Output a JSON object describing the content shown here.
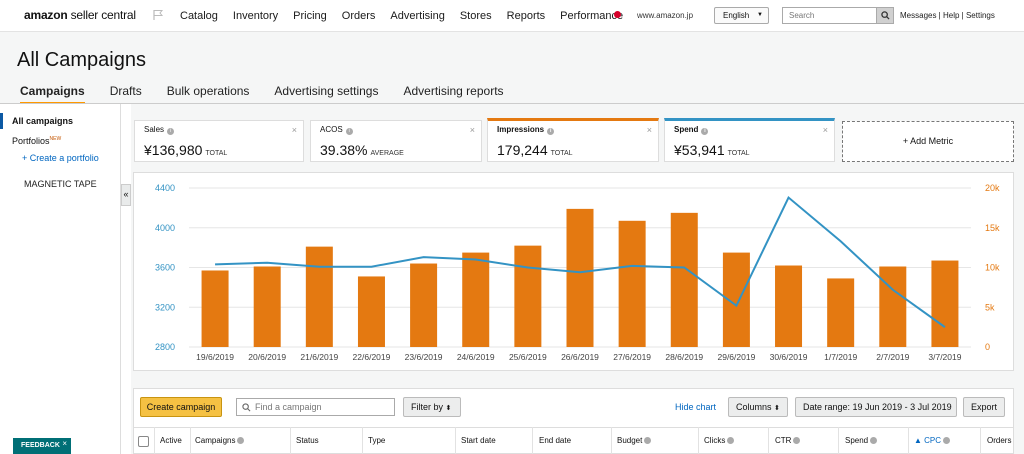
{
  "nav": {
    "logo_bold": "amazon",
    "logo_rest": " seller central",
    "links": [
      "Catalog",
      "Inventory",
      "Pricing",
      "Orders",
      "Advertising",
      "Stores",
      "Reports",
      "Performance"
    ],
    "domain": "www.amazon.jp",
    "language": "English",
    "search_placeholder": "Search",
    "utility_links": "Messages | Help | Settings"
  },
  "page": {
    "title": "All Campaigns",
    "tabs": [
      "Campaigns",
      "Drafts",
      "Bulk operations",
      "Advertising settings",
      "Advertising reports"
    ]
  },
  "sidebar": {
    "all_campaigns": "All campaigns",
    "portfolios": "Portfolios",
    "new_badge": "NEW",
    "create_portfolio": "+ Create a portfolio",
    "portfolio_item": "MAGNETIC TAPE",
    "collapse_glyph": "«"
  },
  "metrics": [
    {
      "label": "Sales",
      "value": "¥136,980",
      "unit": "TOTAL"
    },
    {
      "label": "ACOS",
      "value": "39.38%",
      "unit": "AVERAGE"
    },
    {
      "label": "Impressions",
      "value": "179,244",
      "unit": "TOTAL",
      "accent": "#e47911"
    },
    {
      "label": "Spend",
      "value": "¥53,941",
      "unit": "TOTAL",
      "accent": "#3393c4"
    }
  ],
  "add_metric": "+ Add Metric",
  "chart_data": {
    "type": "bar",
    "categories": [
      "19/6/2019",
      "20/6/2019",
      "21/6/2019",
      "22/6/2019",
      "23/6/2019",
      "24/6/2019",
      "25/6/2019",
      "26/6/2019",
      "27/6/2019",
      "28/6/2019",
      "29/6/2019",
      "30/6/2019",
      "1/7/2019",
      "2/7/2019",
      "3/7/2019"
    ],
    "series": [
      {
        "type": "bar",
        "axis": "left",
        "color": "#e47911",
        "values": [
          3570,
          3610,
          3810,
          3510,
          3640,
          3750,
          3820,
          4190,
          4070,
          4150,
          3750,
          3620,
          3490,
          3610,
          3670
        ]
      },
      {
        "type": "line",
        "axis": "right",
        "color": "#3393c4",
        "values": [
          10400,
          10600,
          10100,
          10100,
          11300,
          11000,
          10000,
          9400,
          10200,
          10000,
          5200,
          18800,
          13300,
          7200,
          2500
        ]
      }
    ],
    "y_left": {
      "ticks": [
        "4400",
        "4000",
        "3600",
        "3200",
        "2800"
      ],
      "range": [
        2800,
        4400
      ],
      "color": "#3393c4"
    },
    "y_right": {
      "ticks": [
        "20k",
        "15k",
        "10k",
        "5k",
        "0"
      ],
      "range": [
        0,
        20000
      ],
      "color": "#e47911"
    },
    "grid": true
  },
  "toolbar": {
    "create_campaign": "Create campaign",
    "find_placeholder": "Find a campaign",
    "filter_by": "Filter by",
    "hide_chart": "Hide chart",
    "columns": "Columns",
    "date_range": "Date range: 19 Jun 2019 - 3 Jul 2019",
    "export": "Export"
  },
  "table_headers": [
    "Active",
    "Campaigns",
    "Status",
    "Type",
    "Start date",
    "End date",
    "Budget",
    "Clicks",
    "CTR",
    "Spend",
    "CPC",
    "Orders"
  ],
  "feedback": "FEEDBACK",
  "feedback_close": "×"
}
